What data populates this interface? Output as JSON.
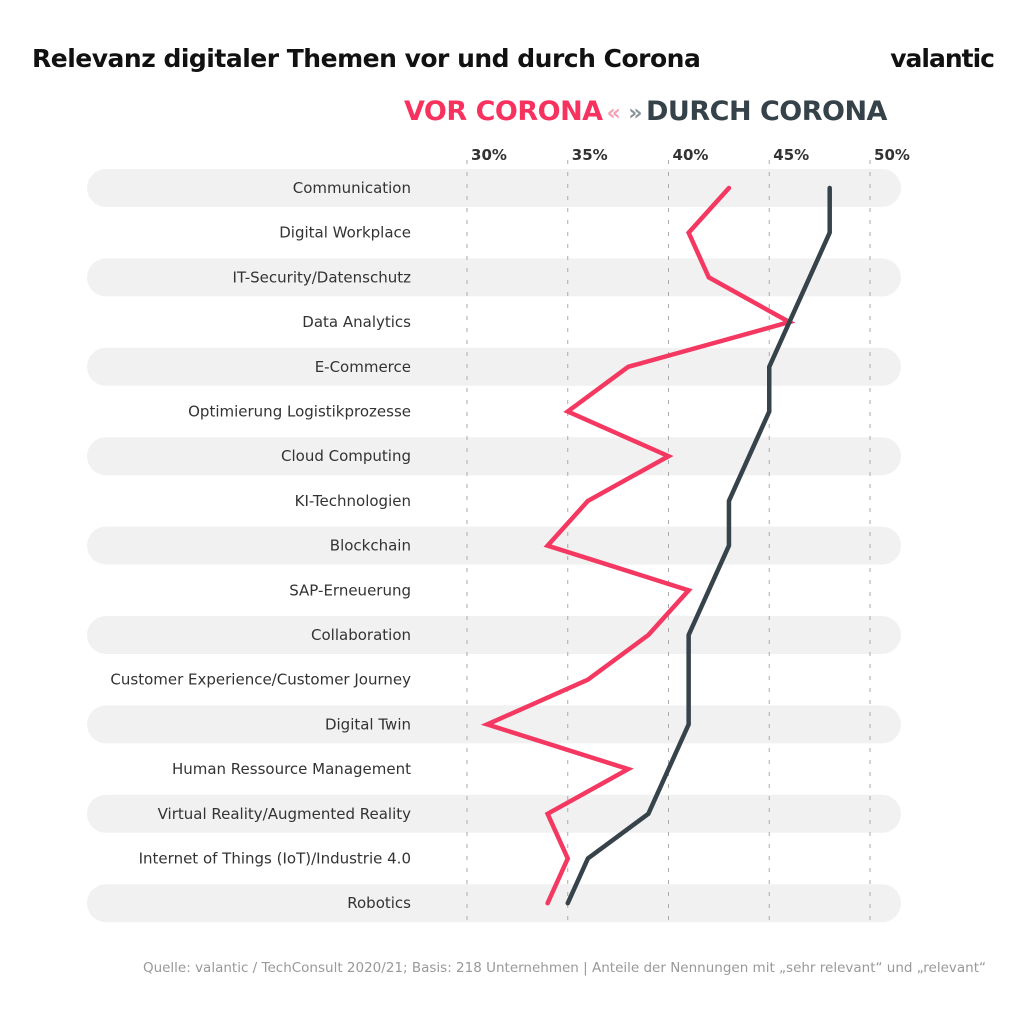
{
  "title": "Relevanz digitaler Themen vor und durch Corona",
  "logo": "valantic",
  "legend": {
    "before": "VOR CORONA",
    "during": "DURCH CORONA",
    "chevron_left": "«",
    "chevron_right": "»"
  },
  "source": "Quelle: valantic / TechConsult 2020/21; Basis: 218 Unternehmen | Anteile der Nennungen mit „sehr relevant“ und „relevant“",
  "colors": {
    "before": "#f43861",
    "during": "#37434b",
    "band": "#f1f1f1",
    "grid": "#aaaaaa"
  },
  "chart_data": {
    "type": "line",
    "orientation": "horizontal",
    "title": "Relevanz digitaler Themen vor und durch Corona",
    "categories": [
      "Communication",
      "Digital Workplace",
      "IT-Security/Datenschutz",
      "Data Analytics",
      "E-Commerce",
      "Optimierung Logistikprozesse",
      "Cloud Computing",
      "KI-Technologien",
      "Blockchain",
      "SAP-Erneuerung",
      "Collaboration",
      "Customer Experience/Customer Journey",
      "Digital Twin",
      "Human Ressource Management",
      "Virtual Reality/Augmented Reality",
      "Internet of Things (IoT)/Industrie 4.0",
      "Robotics"
    ],
    "series": [
      {
        "name": "VOR CORONA",
        "values": [
          43,
          41,
          42,
          46,
          38,
          35,
          40,
          36,
          34,
          41,
          39,
          36,
          31,
          38,
          34,
          35,
          34
        ]
      },
      {
        "name": "DURCH CORONA",
        "values": [
          48,
          48,
          47,
          46,
          45,
          45,
          44,
          43,
          43,
          42,
          41,
          41,
          41,
          40,
          39,
          36,
          35
        ]
      }
    ],
    "xticks": [
      "30%",
      "35%",
      "40%",
      "45%",
      "50%"
    ],
    "xtick_values": [
      30,
      35,
      40,
      45,
      50
    ],
    "xlim": [
      30,
      50
    ],
    "grid": "vertical dashed",
    "legend_position": "top"
  }
}
